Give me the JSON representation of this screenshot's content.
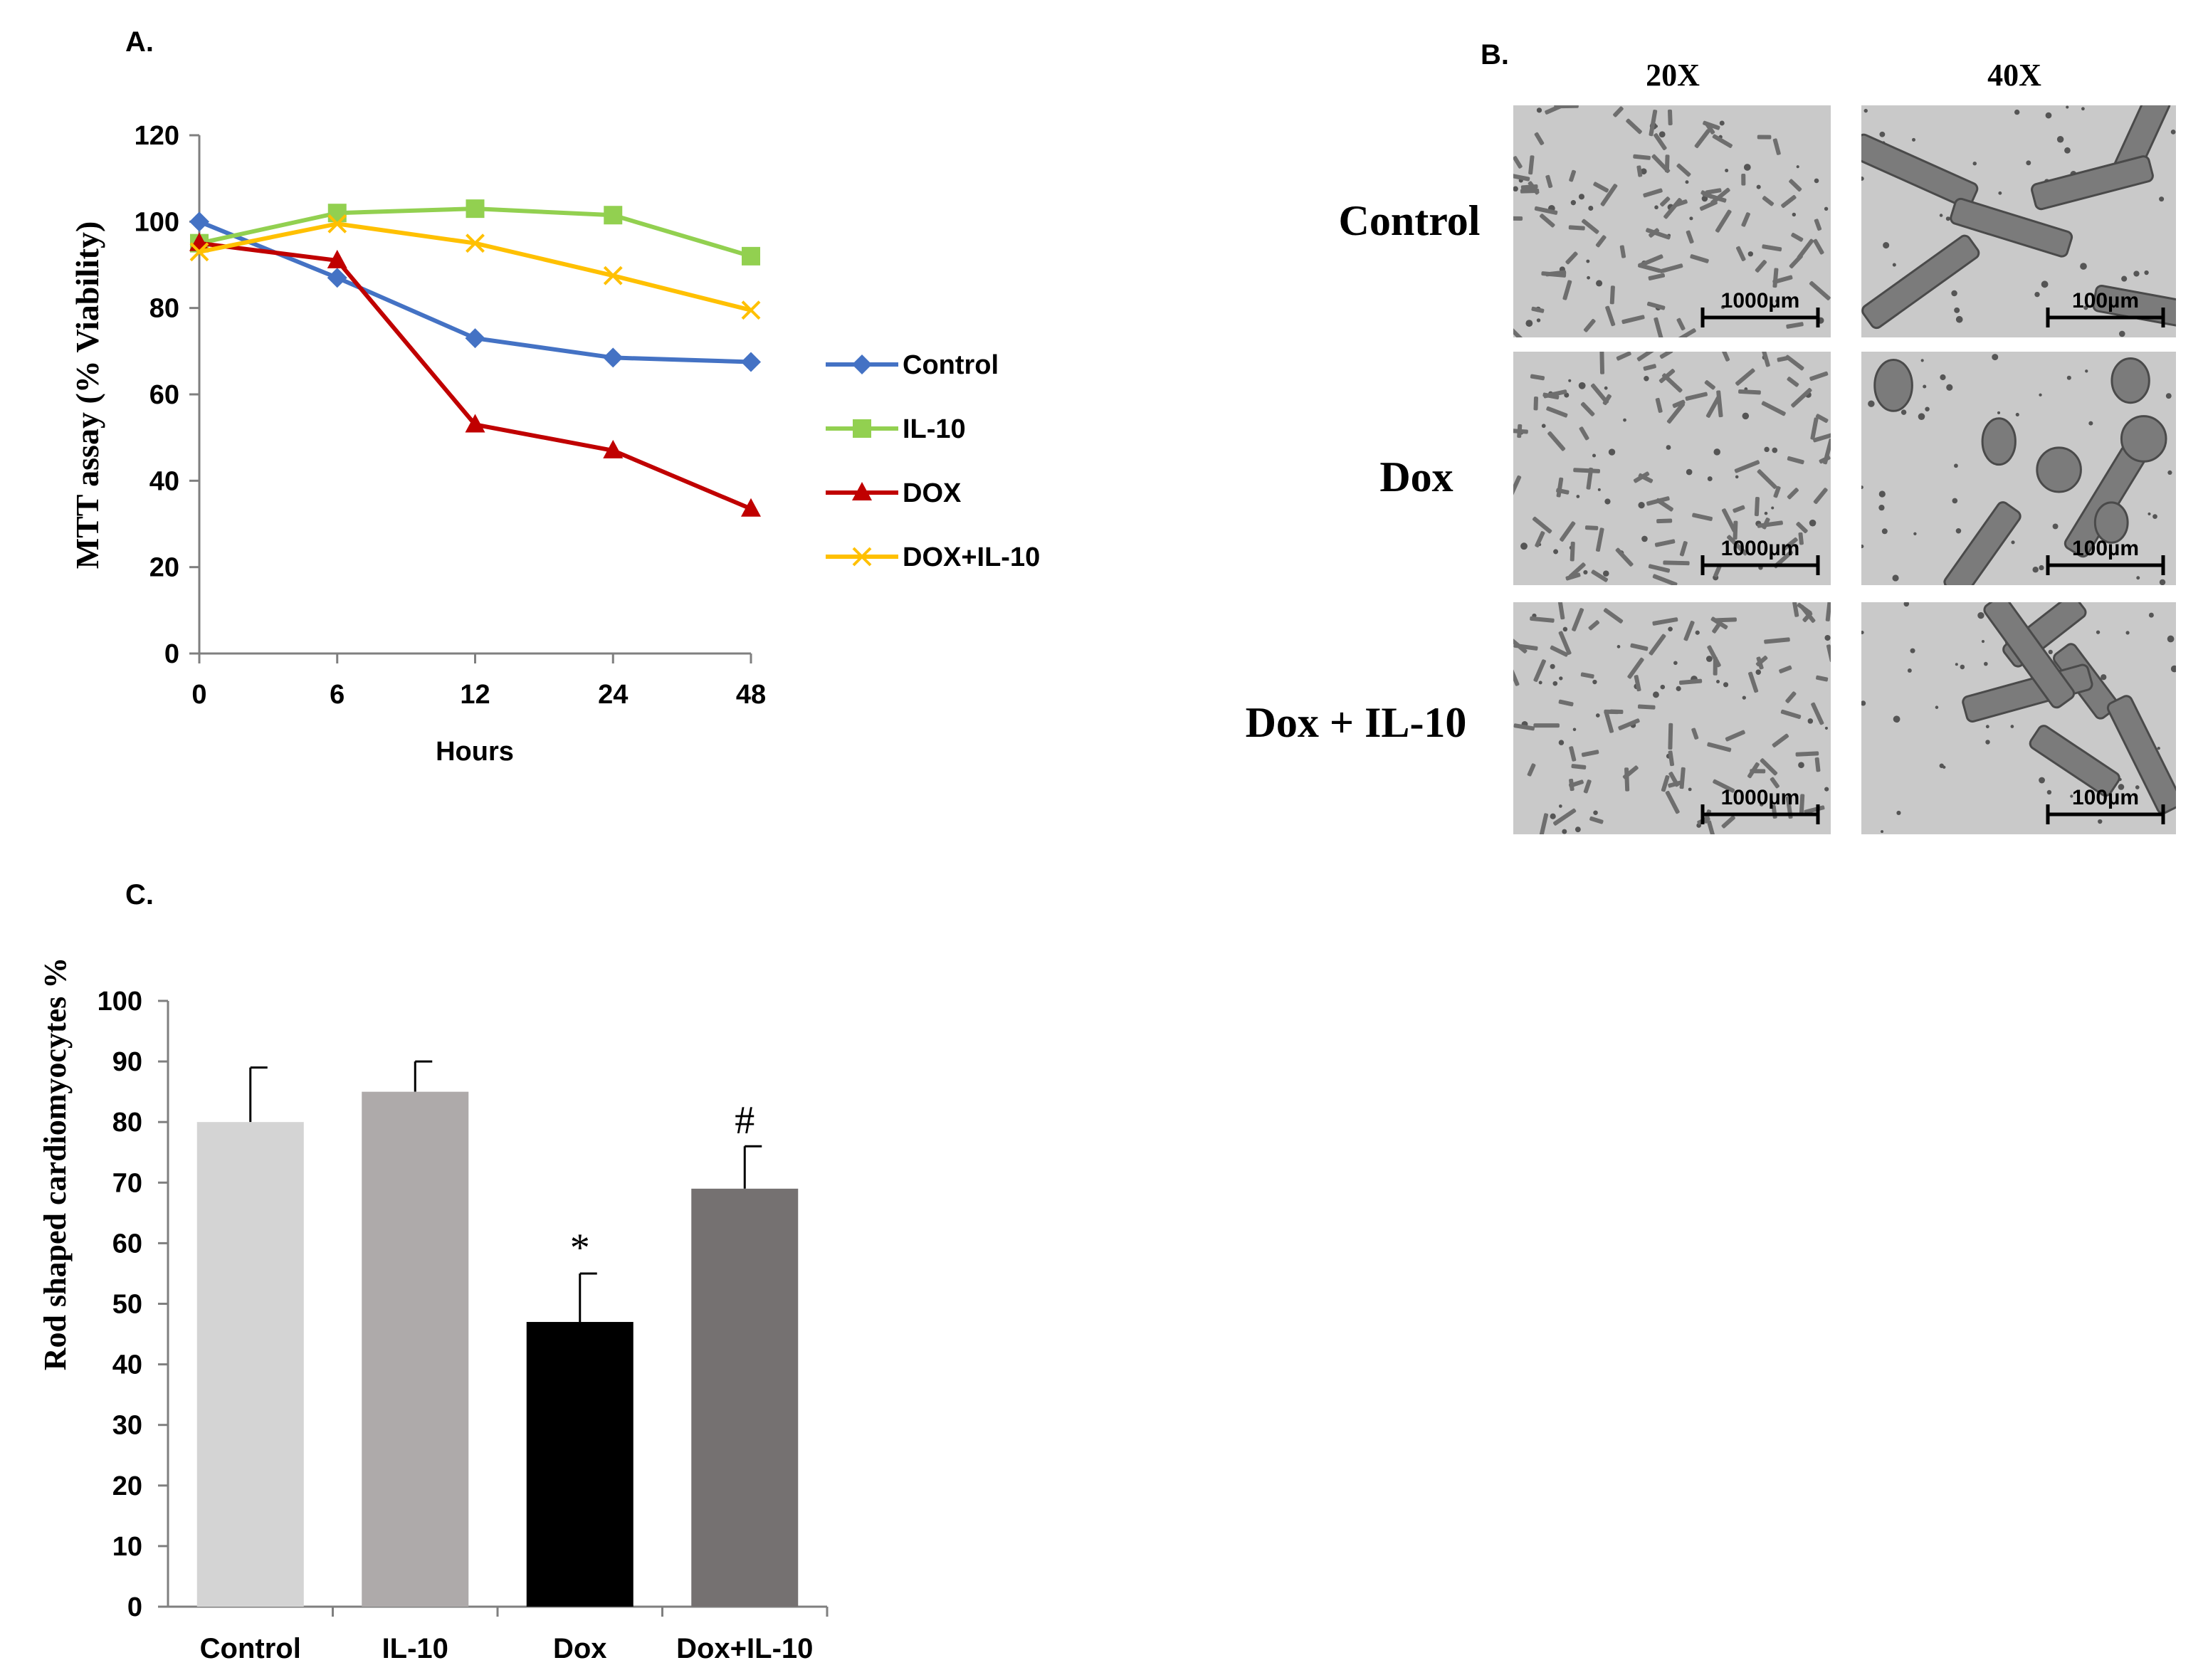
{
  "panels": {
    "a_label": "A.",
    "b_label": "B.",
    "c_label": "C."
  },
  "micrographs": {
    "col_headers": [
      "20X",
      "40X"
    ],
    "row_labels": [
      "Control",
      "Dox",
      "Dox + IL-10"
    ],
    "scale_20x": "1000µm",
    "scale_40x": "100µm",
    "colors": {
      "background": "#c9c9c9",
      "cell": "#6e6e6e"
    }
  },
  "chart_data": [
    {
      "type": "line",
      "x": [
        "0",
        "6",
        "12",
        "24",
        "48"
      ],
      "xlabel": "Hours",
      "ylabel": "MTT assay (% Viability)",
      "ylim": [
        0,
        120
      ],
      "yticks": [
        0,
        20,
        40,
        60,
        80,
        100,
        120
      ],
      "legend_position": "right",
      "series": [
        {
          "name": "Control",
          "values": [
            100,
            87,
            73,
            68.5,
            67.5
          ],
          "color": "#4472c4",
          "marker": "diamond"
        },
        {
          "name": "IL-10",
          "values": [
            95,
            102,
            103,
            101.5,
            92
          ],
          "color": "#92d050",
          "marker": "square"
        },
        {
          "name": "DOX",
          "values": [
            95,
            91,
            53,
            47,
            33.5
          ],
          "color": "#c00000",
          "marker": "triangle"
        },
        {
          "name": "DOX+IL-10",
          "values": [
            93,
            99.5,
            95,
            87.5,
            79.5
          ],
          "color": "#ffc000",
          "marker": "x"
        }
      ]
    },
    {
      "type": "bar",
      "categories": [
        "Control",
        "IL-10",
        "Dox",
        "Dox+IL-10"
      ],
      "values": [
        80,
        85,
        47,
        69
      ],
      "errors": [
        9,
        5,
        8,
        7
      ],
      "annotations": [
        "",
        "",
        "*",
        "#"
      ],
      "colors": [
        "#d4d4d4",
        "#aeaaaa",
        "#000000",
        "#757171"
      ],
      "ylabel": "Rod shaped cardiomyocytes %",
      "ylim": [
        0,
        100
      ],
      "yticks": [
        0,
        10,
        20,
        30,
        40,
        50,
        60,
        70,
        80,
        90,
        100
      ]
    }
  ]
}
